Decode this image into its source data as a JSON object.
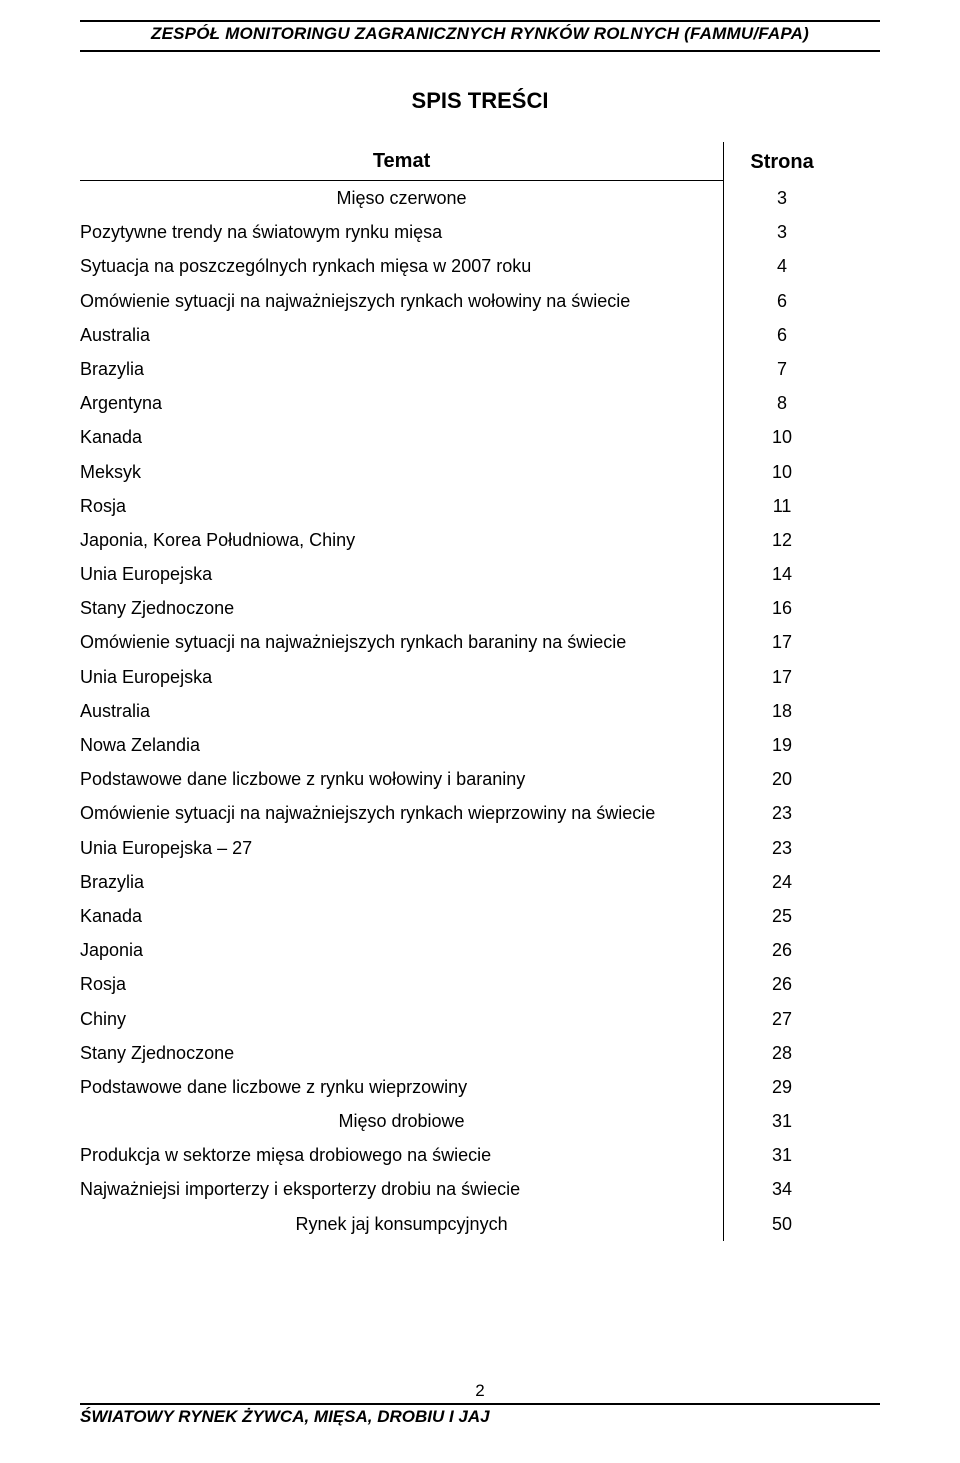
{
  "header": {
    "text": "ZESPÓŁ MONITORINGU ZAGRANICZNYCH RYNKÓW ROLNYCH (FAMMU/FAPA)"
  },
  "title": "SPIS TREŚCI",
  "columns": {
    "topic": "Temat",
    "page": "Strona"
  },
  "rows": [
    {
      "label": "Mięso czerwone",
      "page": "3",
      "align": "center"
    },
    {
      "label": "Pozytywne trendy na światowym rynku mięsa",
      "page": "3",
      "align": "left"
    },
    {
      "label": "Sytuacja na poszczególnych rynkach mięsa w 2007 roku",
      "page": "4",
      "align": "left"
    },
    {
      "label": "Omówienie sytuacji na najważniejszych rynkach wołowiny na świecie",
      "page": "6",
      "align": "left"
    },
    {
      "label": "Australia",
      "page": "6",
      "align": "left"
    },
    {
      "label": "Brazylia",
      "page": "7",
      "align": "left"
    },
    {
      "label": "Argentyna",
      "page": "8",
      "align": "left"
    },
    {
      "label": "Kanada",
      "page": "10",
      "align": "left"
    },
    {
      "label": "Meksyk",
      "page": "10",
      "align": "left"
    },
    {
      "label": "Rosja",
      "page": "11",
      "align": "left"
    },
    {
      "label": "Japonia, Korea Południowa, Chiny",
      "page": "12",
      "align": "left"
    },
    {
      "label": "Unia Europejska",
      "page": "14",
      "align": "left"
    },
    {
      "label": "Stany Zjednoczone",
      "page": "16",
      "align": "left"
    },
    {
      "label": "Omówienie sytuacji na najważniejszych rynkach baraniny na świecie",
      "page": "17",
      "align": "left"
    },
    {
      "label": "Unia Europejska",
      "page": "17",
      "align": "left"
    },
    {
      "label": "Australia",
      "page": "18",
      "align": "left"
    },
    {
      "label": "Nowa Zelandia",
      "page": "19",
      "align": "left"
    },
    {
      "label": "Podstawowe dane liczbowe z rynku wołowiny i baraniny",
      "page": "20",
      "align": "left"
    },
    {
      "label": "Omówienie sytuacji na najważniejszych rynkach wieprzowiny na świecie",
      "page": "23",
      "align": "left"
    },
    {
      "label": "Unia Europejska – 27",
      "page": "23",
      "align": "left"
    },
    {
      "label": "Brazylia",
      "page": "24",
      "align": "left"
    },
    {
      "label": "Kanada",
      "page": "25",
      "align": "left"
    },
    {
      "label": "Japonia",
      "page": "26",
      "align": "left"
    },
    {
      "label": "Rosja",
      "page": "26",
      "align": "left"
    },
    {
      "label": "Chiny",
      "page": "27",
      "align": "left"
    },
    {
      "label": "Stany Zjednoczone",
      "page": "28",
      "align": "left"
    },
    {
      "label": "Podstawowe dane liczbowe z rynku wieprzowiny",
      "page": "29",
      "align": "left"
    },
    {
      "label": "Mięso drobiowe",
      "page": "31",
      "align": "center"
    },
    {
      "label": "Produkcja w sektorze mięsa drobiowego na świecie",
      "page": "31",
      "align": "left"
    },
    {
      "label": "Najważniejsi importerzy i eksporterzy drobiu na świecie",
      "page": "34",
      "align": "left"
    },
    {
      "label": "Rynek jaj konsumpcyjnych",
      "page": "50",
      "align": "center"
    }
  ],
  "footer": {
    "page_number": "2",
    "label": "ŚWIATOWY RYNEK ŻYWCA, MIĘSA, DROBIU I JAJ"
  }
}
